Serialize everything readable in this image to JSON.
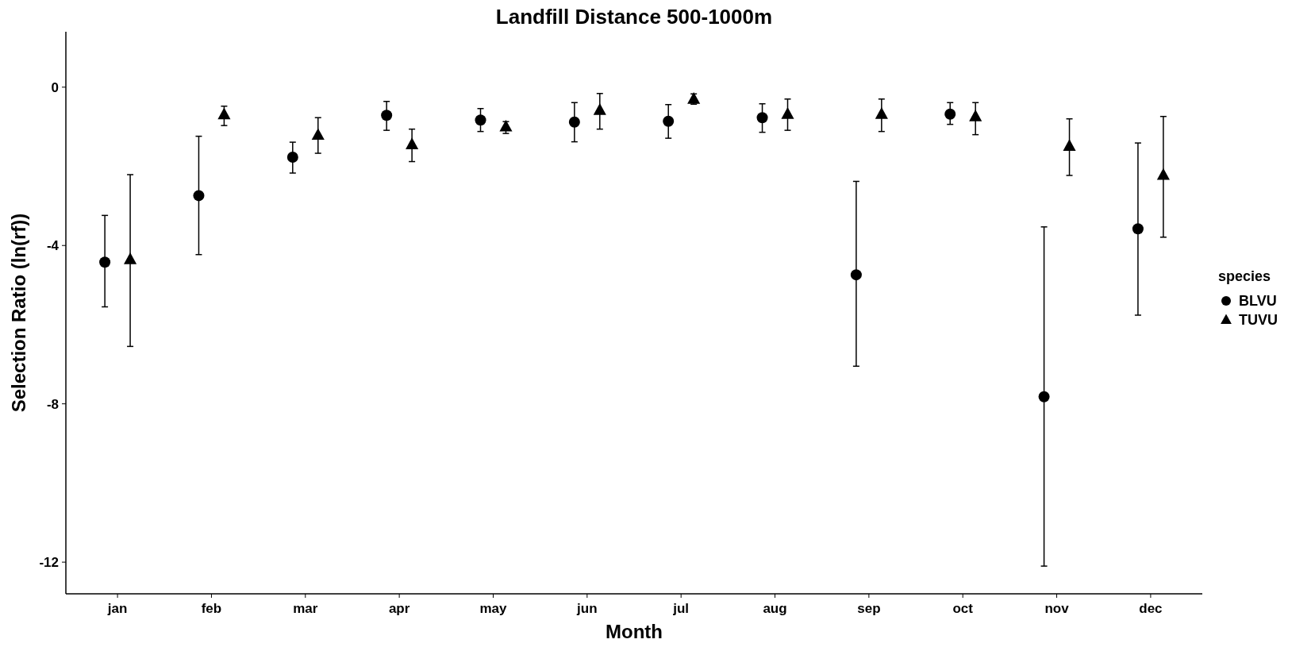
{
  "chart_data": {
    "type": "scatter",
    "title": "Landfill Distance 500-1000m",
    "xlabel": "Month",
    "ylabel": "Selection Ratio (ln(rf))",
    "legend_title": "species",
    "legend": "right",
    "grid": false,
    "categories": [
      "jan",
      "feb",
      "mar",
      "apr",
      "may",
      "jun",
      "jul",
      "aug",
      "sep",
      "oct",
      "nov",
      "dec"
    ],
    "ylim": [
      -12.8,
      1.4
    ],
    "yticks": [
      0,
      -4,
      -8,
      -12
    ],
    "series": [
      {
        "name": "BLVU",
        "color": "#000000",
        "marker": "circle",
        "values": [
          -4.42,
          -2.74,
          -1.77,
          -0.71,
          -0.83,
          -0.88,
          -0.86,
          -0.77,
          -4.74,
          -0.68,
          -7.82,
          -3.58
        ],
        "errors": [
          [
            -5.55,
            -3.24
          ],
          [
            -4.23,
            -1.24
          ],
          [
            -2.17,
            -1.39
          ],
          [
            -1.09,
            -0.36
          ],
          [
            -1.12,
            -0.54
          ],
          [
            -1.38,
            -0.39
          ],
          [
            -1.29,
            -0.44
          ],
          [
            -1.14,
            -0.42
          ],
          [
            -7.05,
            -2.38
          ],
          [
            -0.94,
            -0.39
          ],
          [
            -12.1,
            -3.53
          ],
          [
            -5.76,
            -1.41
          ]
        ]
      },
      {
        "name": "TUVU",
        "color": "#000000",
        "marker": "triangle",
        "values": [
          -4.35,
          -0.69,
          -1.21,
          -1.45,
          -1.0,
          -0.58,
          -0.3,
          -0.68,
          -0.68,
          -0.74,
          -1.49,
          -2.22
        ],
        "errors": [
          [
            -6.55,
            -2.21
          ],
          [
            -0.97,
            -0.48
          ],
          [
            -1.67,
            -0.77
          ],
          [
            -1.88,
            -1.06
          ],
          [
            -1.17,
            -0.87
          ],
          [
            -1.06,
            -0.16
          ],
          [
            -0.43,
            -0.17
          ],
          [
            -1.09,
            -0.3
          ],
          [
            -1.12,
            -0.3
          ],
          [
            -1.2,
            -0.39
          ],
          [
            -2.23,
            -0.8
          ],
          [
            -3.79,
            -0.74
          ]
        ]
      }
    ]
  }
}
